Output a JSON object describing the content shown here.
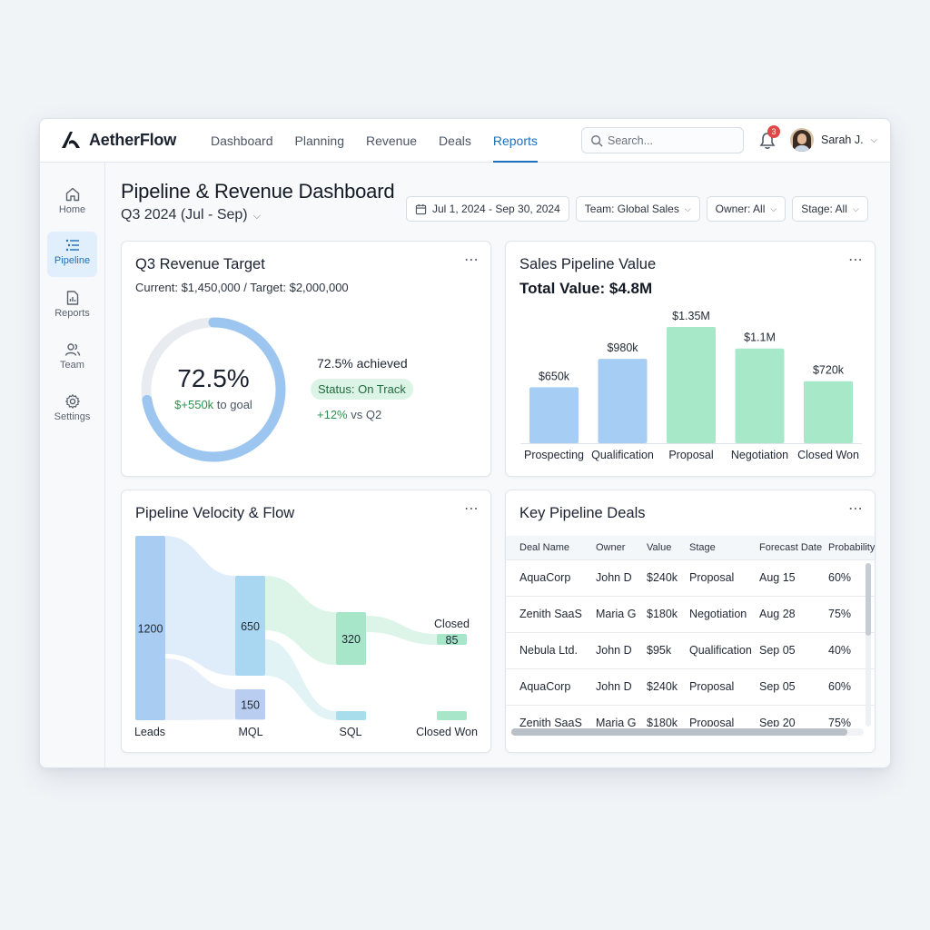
{
  "app": {
    "name": "AetherFlow",
    "nav": [
      {
        "label": "Dashboard",
        "active": false
      },
      {
        "label": "Planning",
        "active": false
      },
      {
        "label": "Revenue",
        "active": false
      },
      {
        "label": "Deals",
        "active": false
      },
      {
        "label": "Reports",
        "active": true
      }
    ],
    "search_placeholder": "Search...",
    "notifications_count": "3",
    "user_name": "Sarah J.",
    "accent_color": "#1f6fb8"
  },
  "sidebar": {
    "items": [
      {
        "label": "Home",
        "icon": "home-icon",
        "active": false
      },
      {
        "label": "Pipeline",
        "icon": "pipeline-list-icon",
        "active": true
      },
      {
        "label": "Reports",
        "icon": "report-icon",
        "active": false
      },
      {
        "label": "Team",
        "icon": "team-icon",
        "active": false
      },
      {
        "label": "Settings",
        "icon": "gear-icon",
        "active": false
      }
    ]
  },
  "header": {
    "title": "Pipeline & Revenue Dashboard",
    "period": "Q3 2024 (Jul - Sep)",
    "filters": {
      "date_range": "Jul 1, 2024 - Sep 30, 2024",
      "team": "Team: Global Sales",
      "owner": "Owner: All",
      "stage": "Stage: All"
    }
  },
  "revenue_card": {
    "title": "Q3 Revenue Target",
    "subtitle": "Current: $1,450,000 / Target: $2,000,000",
    "percent_label": "72.5%",
    "percent_value": 0.725,
    "goal_amount": "$+550k",
    "goal_suffix": " to goal",
    "achieved": "72.5% achieved",
    "status": "Status: On Track",
    "delta_value": "+12%",
    "delta_suffix": " vs Q2",
    "ring_color": "#9cc6f0",
    "track_color": "#e8ecf0"
  },
  "pipeline_card": {
    "title": "Sales Pipeline Value",
    "total": "Total Value: $4.8M"
  },
  "velocity_card": {
    "title": "Pipeline Velocity & Flow"
  },
  "deals_card": {
    "title": "Key Pipeline Deals",
    "columns": [
      "Deal Name",
      "Owner",
      "Value",
      "Stage",
      "Forecast Date",
      "Probability"
    ],
    "rows": [
      [
        "AquaCorp",
        "John D",
        "$240k",
        "Proposal",
        "Aug 15",
        "60%"
      ],
      [
        "Zenith SaaS",
        "Maria G",
        "$180k",
        "Negotiation",
        "Aug 28",
        "75%"
      ],
      [
        "Nebula Ltd.",
        "John D",
        "$95k",
        "Qualification",
        "Sep 05",
        "40%"
      ],
      [
        "AquaCorp",
        "John D",
        "$240k",
        "Proposal",
        "Sep 05",
        "60%"
      ],
      [
        "Zenith SaaS",
        "Maria G",
        "$180k",
        "Proposal",
        "Sep 20",
        "75%"
      ]
    ]
  },
  "chart_data": [
    {
      "type": "bar",
      "categories": [
        "Prospecting",
        "Qualification",
        "Proposal",
        "Negotiation",
        "Closed Won"
      ],
      "values": [
        650,
        980,
        1350,
        1100,
        720
      ],
      "value_labels": [
        "$650k",
        "$980k",
        "$1.35M",
        "$1.1M",
        "$720k"
      ],
      "colors": [
        "#a6cdf4",
        "#a6cdf4",
        "#a6e8c8",
        "#a6e8c8",
        "#a6e8c8"
      ],
      "ylim": [
        0,
        1350
      ],
      "grid": false,
      "legend": "none"
    },
    {
      "type": "sankey",
      "stages": [
        "Leads",
        "MQL",
        "SQL",
        "Closed Won"
      ],
      "nodes": [
        {
          "stage": "Leads",
          "label": "1200",
          "value": 1200
        },
        {
          "stage": "MQL",
          "label": "650",
          "value": 650
        },
        {
          "stage": "MQL",
          "label": "150",
          "value": 150
        },
        {
          "stage": "SQL",
          "label": "320",
          "value": 320
        },
        {
          "stage": "SQL",
          "label": "",
          "value": 30
        },
        {
          "stage": "Closed",
          "label": "85",
          "value": 85,
          "caption": "Closed"
        },
        {
          "stage": "Closed Won",
          "label": "",
          "value": 30
        }
      ]
    }
  ]
}
